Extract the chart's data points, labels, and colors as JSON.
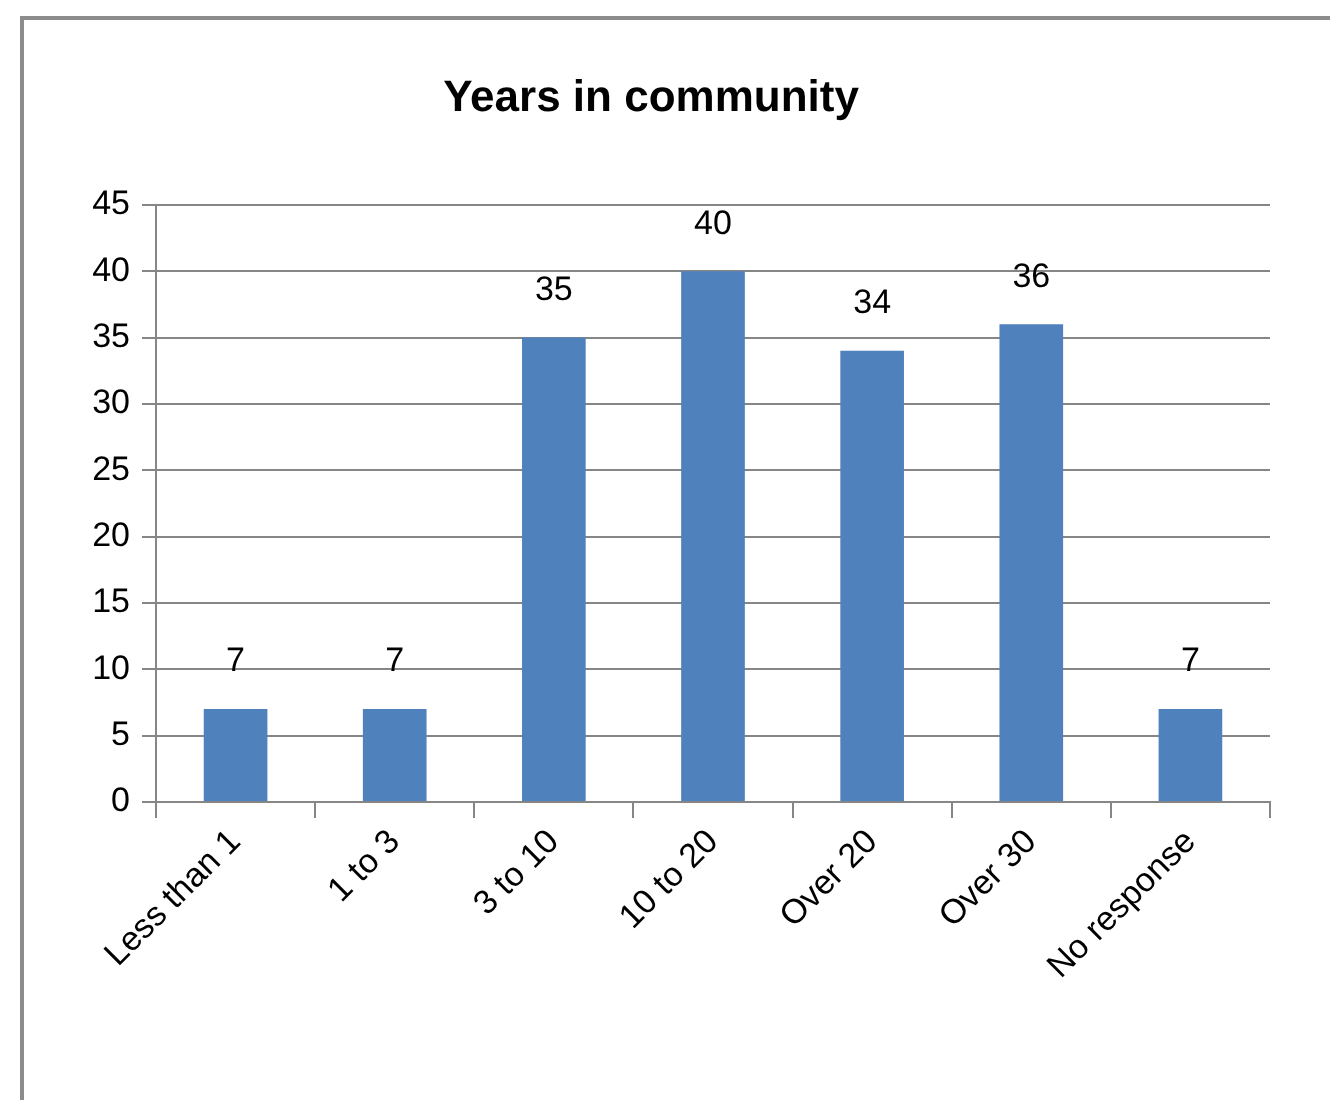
{
  "chart_data": {
    "type": "bar",
    "title": "Years in community",
    "categories": [
      "Less than 1",
      "1 to 3",
      "3 to 10",
      "10 to 20",
      "Over 20",
      "Over 30",
      "No response"
    ],
    "values": [
      7,
      7,
      35,
      40,
      34,
      36,
      7
    ],
    "color": "#4f81bd",
    "ylim": [
      0,
      45
    ],
    "yticks": [
      0,
      5,
      10,
      15,
      20,
      25,
      30,
      35,
      40,
      45
    ],
    "grid": "y",
    "data_labels": true
  }
}
